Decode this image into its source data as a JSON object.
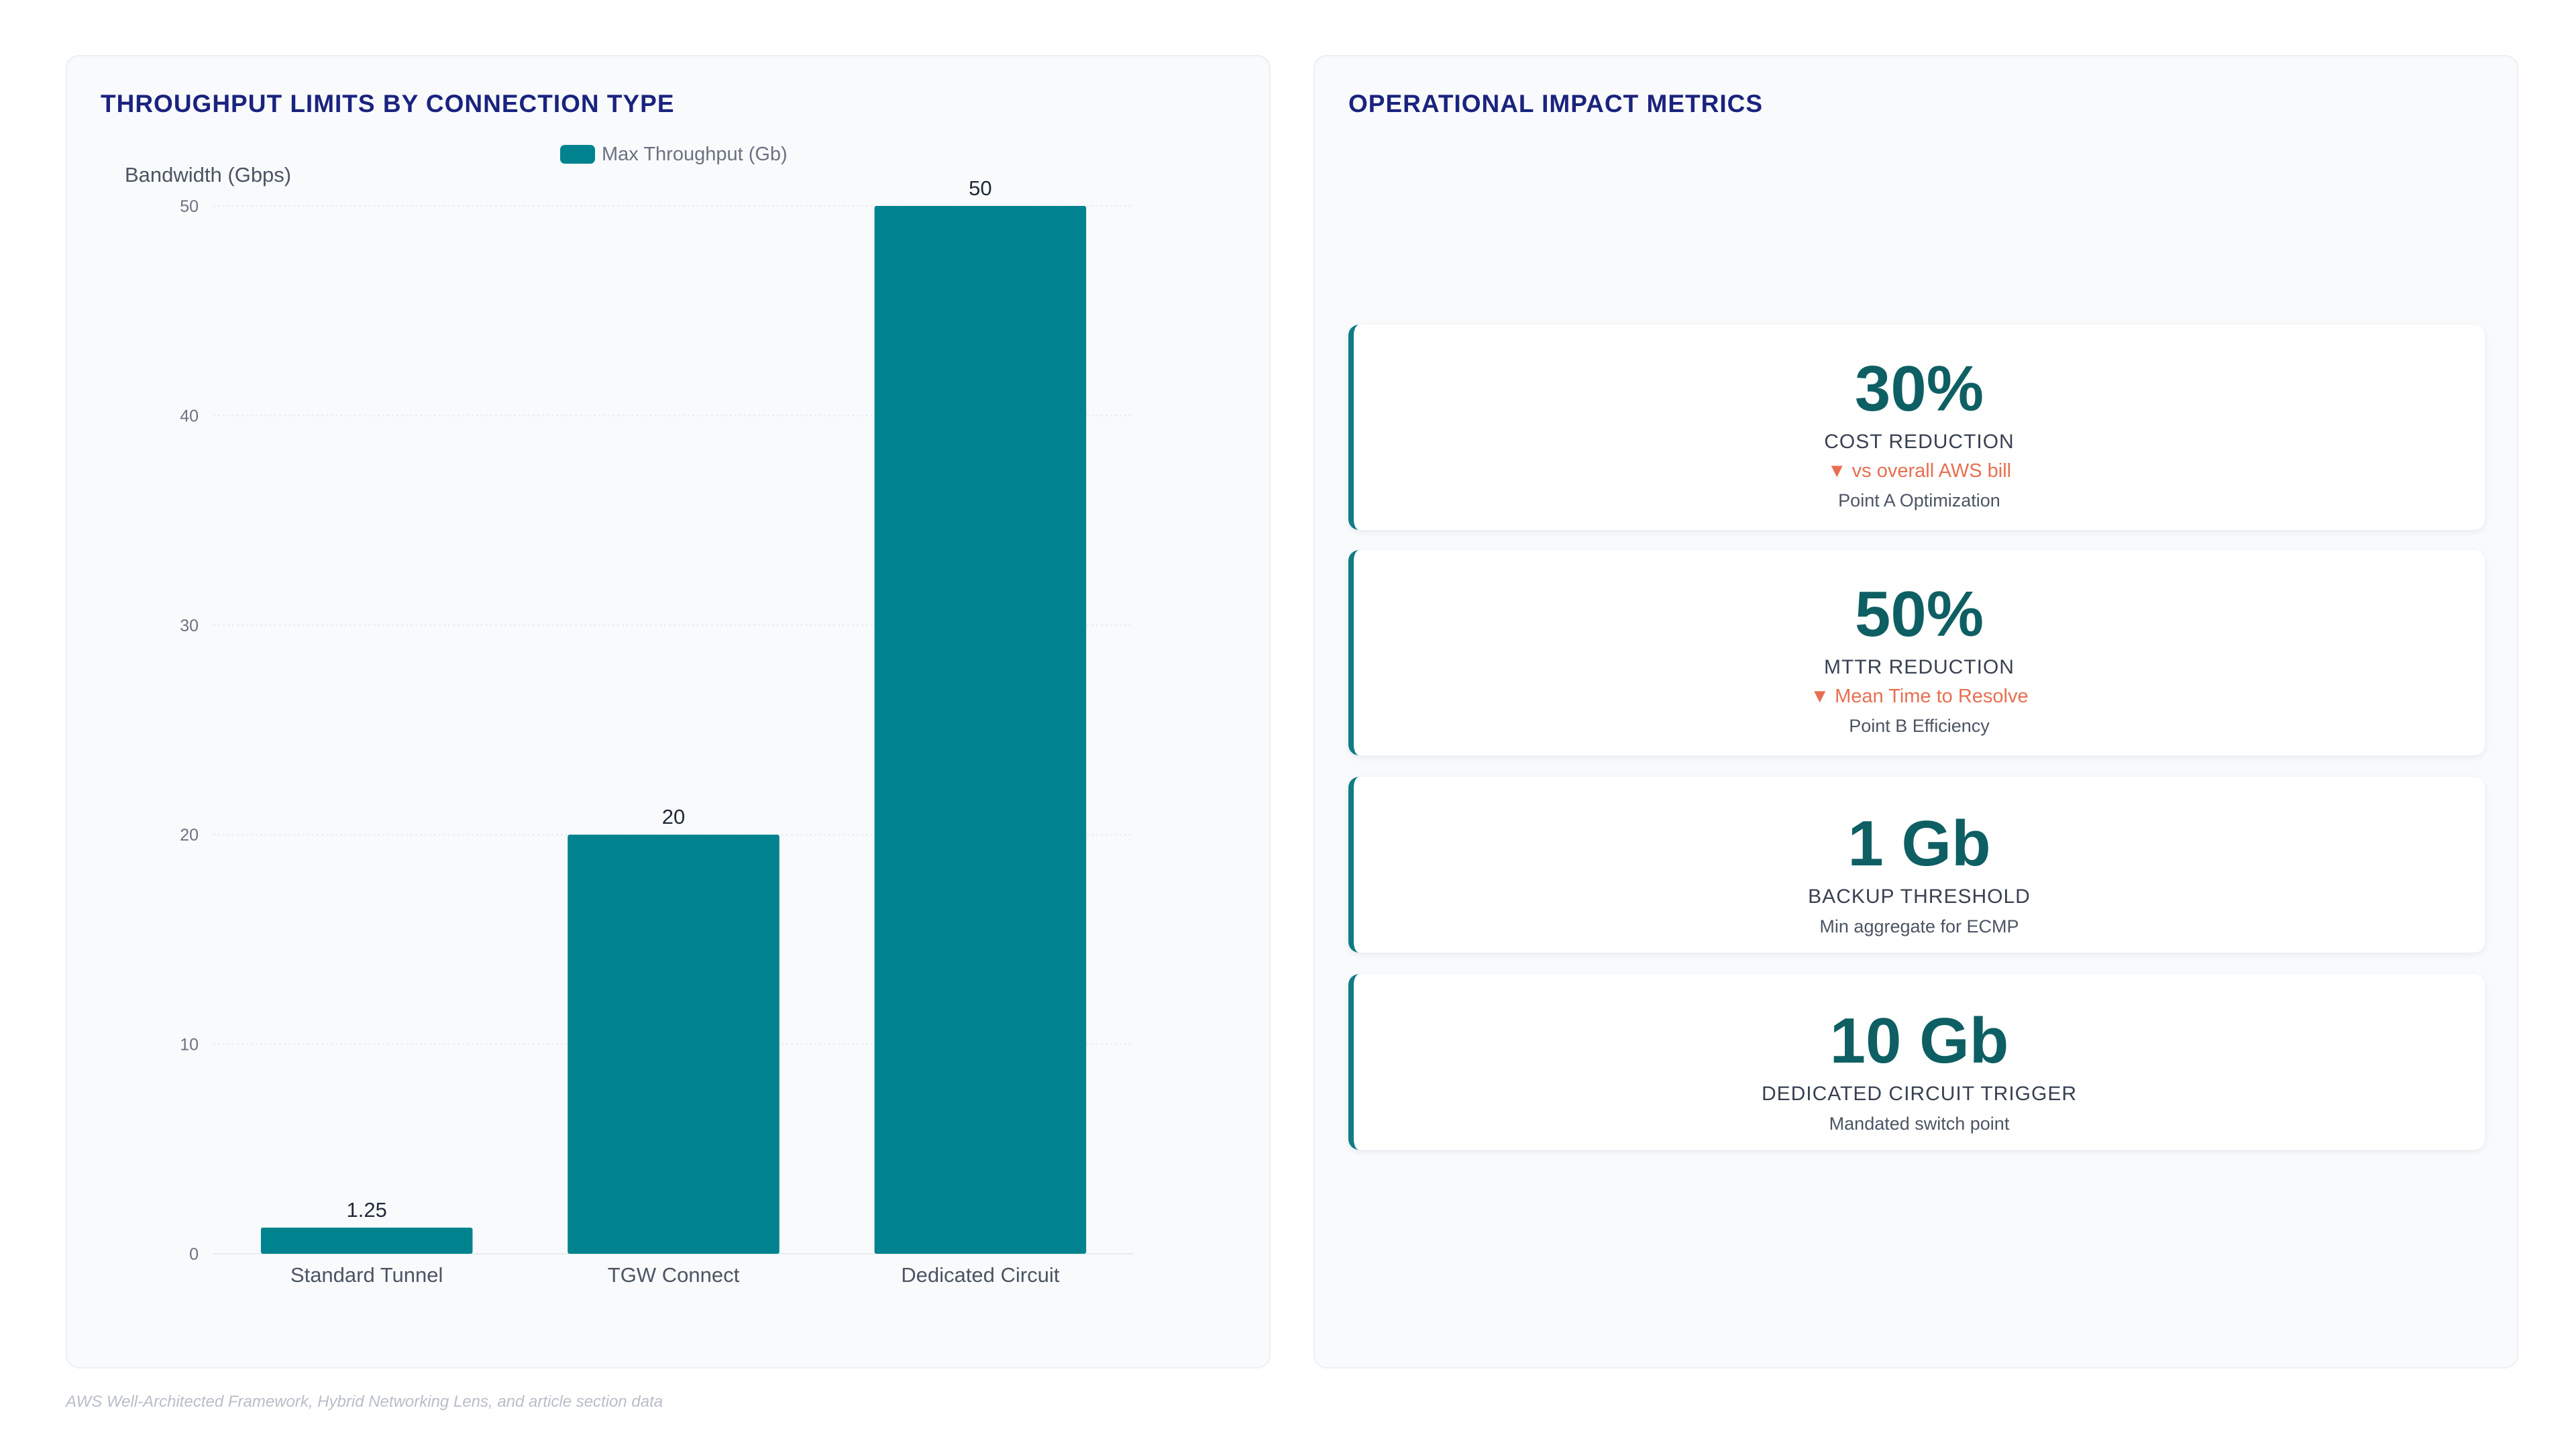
{
  "left_panel": {
    "title": "THROUGHPUT LIMITS BY CONNECTION TYPE"
  },
  "right_panel": {
    "title": "OPERATIONAL IMPACT METRICS"
  },
  "chart_data": {
    "type": "bar",
    "categories": [
      "Standard Tunnel",
      "TGW Connect",
      "Dedicated Circuit"
    ],
    "series": [
      {
        "name": "Max Throughput (Gb)",
        "values": [
          1.25,
          20,
          50
        ],
        "data_labels": [
          "1.25",
          "20",
          "50"
        ]
      }
    ],
    "ylabel": "Bandwidth (Gbps)",
    "xlabel": "",
    "ylim": [
      0,
      50
    ],
    "yticks": [
      0,
      10,
      20,
      30,
      40,
      50
    ],
    "grid": true,
    "legend_position": "top-center",
    "colors": {
      "bar": "#00838f",
      "grid": "#e8ebef",
      "tick_text": "#6b7280",
      "axis_title": "#4b5563",
      "label_text": "#1f2937"
    }
  },
  "metrics": [
    {
      "value": "30%",
      "label": "COST REDUCTION",
      "trend": "▼ vs overall AWS bill",
      "note": "Point A Optimization"
    },
    {
      "value": "50%",
      "label": "MTTR REDUCTION",
      "trend": "▼ Mean Time to Resolve",
      "note": "Point B Efficiency"
    },
    {
      "value": "1 Gb",
      "label": "BACKUP THRESHOLD",
      "note": "Min aggregate for ECMP"
    },
    {
      "value": "10 Gb",
      "label": "DEDICATED CIRCUIT TRIGGER",
      "note": "Mandated switch point"
    }
  ],
  "colors": {
    "title": "#1a237e",
    "metric_value": "#0e5f63",
    "metric_accent": "#0f7c86",
    "trend": "#e76f51"
  },
  "footer": {
    "source": "AWS Well-Architected Framework, Hybrid Networking Lens, and article section data"
  }
}
